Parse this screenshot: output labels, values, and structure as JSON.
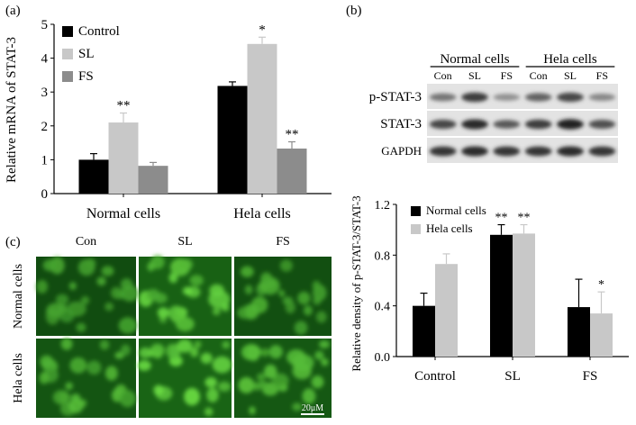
{
  "panels": {
    "a": {
      "label": "(a)"
    },
    "b": {
      "label": "(b)"
    },
    "c": {
      "label": "(c)"
    }
  },
  "colors": {
    "black": "#000000",
    "light": "#c8c8c8",
    "dark": "#8c8c8c",
    "cell_green": "#3fae2e"
  },
  "chart_data": [
    {
      "type": "bar",
      "panel": "a",
      "title": "",
      "xlabel": "",
      "ylabel": "Relative mRNA of STAT-3",
      "ylim": [
        0,
        5
      ],
      "yticks": [
        0,
        1,
        2,
        3,
        4,
        5
      ],
      "categories": [
        "Normal cells",
        "Hela cells"
      ],
      "series": [
        {
          "name": "Control",
          "color": "#000000",
          "values": [
            1.0,
            3.18
          ],
          "errors": [
            0.18,
            0.12
          ],
          "annotations": [
            "",
            ""
          ]
        },
        {
          "name": "SL",
          "color": "#c8c8c8",
          "values": [
            2.1,
            4.42
          ],
          "errors": [
            0.28,
            0.2
          ],
          "annotations": [
            "**",
            "*"
          ]
        },
        {
          "name": "FS",
          "color": "#8c8c8c",
          "values": [
            0.82,
            1.33
          ],
          "errors": [
            0.1,
            0.2
          ],
          "annotations": [
            "",
            "**"
          ]
        }
      ],
      "legend": "top-left"
    },
    {
      "type": "bar",
      "panel": "b",
      "title": "",
      "xlabel": "",
      "ylabel": "Relative density of p-STAT-3/STAT-3",
      "ylim": [
        0,
        1.2
      ],
      "yticks": [
        "0.0",
        "0.4",
        "0.8",
        "1.2"
      ],
      "categories": [
        "Control",
        "SL",
        "FS"
      ],
      "series": [
        {
          "name": "Normal cells",
          "color": "#000000",
          "values": [
            0.4,
            0.96,
            0.39
          ],
          "errors": [
            0.1,
            0.08,
            0.22
          ],
          "annotations": [
            "",
            "**",
            ""
          ]
        },
        {
          "name": "Hela cells",
          "color": "#c8c8c8",
          "values": [
            0.73,
            0.97,
            0.34
          ],
          "errors": [
            0.08,
            0.07,
            0.17
          ],
          "annotations": [
            "",
            "**",
            "*"
          ]
        }
      ],
      "legend": "top-left"
    }
  ],
  "blot": {
    "groups": [
      "Normal cells",
      "Hela cells"
    ],
    "lanes": [
      "Con",
      "SL",
      "FS",
      "Con",
      "SL",
      "FS"
    ],
    "rows": [
      {
        "name": "p-STAT-3",
        "intensity": [
          0.45,
          0.75,
          0.3,
          0.55,
          0.7,
          0.35
        ]
      },
      {
        "name": "STAT-3",
        "intensity": [
          0.7,
          0.85,
          0.6,
          0.75,
          0.9,
          0.65
        ]
      },
      {
        "name": "GAPDH",
        "intensity": [
          0.8,
          0.85,
          0.8,
          0.8,
          0.85,
          0.8
        ]
      }
    ]
  },
  "micro": {
    "columns": [
      "Con",
      "SL",
      "FS"
    ],
    "rows": [
      "Normal cells",
      "Hela cells"
    ],
    "brightness": [
      [
        0.35,
        0.7,
        0.4
      ],
      [
        0.5,
        0.75,
        0.55
      ]
    ],
    "scale_bar": "20μM"
  }
}
